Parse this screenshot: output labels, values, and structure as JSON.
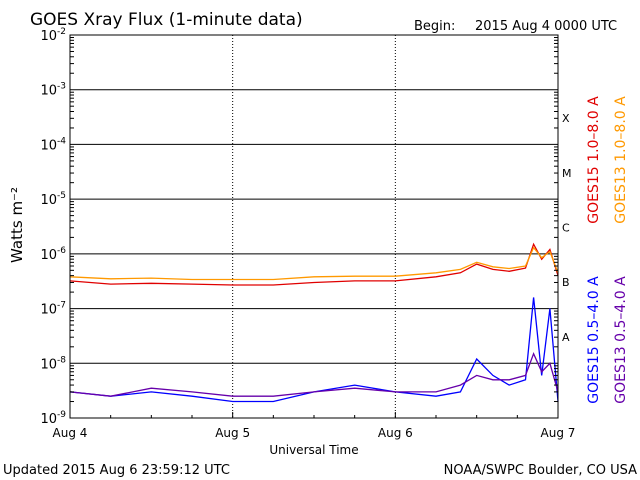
{
  "chart_data": {
    "type": "line",
    "title": "GOES Xray Flux (1-minute data)",
    "begin_label": "Begin:",
    "begin": "2015 Aug 4 0000 UTC",
    "ylabel": "Watts m⁻²",
    "xlabel": "Universal Time",
    "y_scale": "log",
    "ylim": [
      1e-09,
      0.01
    ],
    "y_ticks": [
      {
        "value": 0.01,
        "base": "10",
        "exp": "-2"
      },
      {
        "value": 0.001,
        "base": "10",
        "exp": "-3"
      },
      {
        "value": 0.0001,
        "base": "10",
        "exp": "-4"
      },
      {
        "value": 1e-05,
        "base": "10",
        "exp": "-5"
      },
      {
        "value": 1e-06,
        "base": "10",
        "exp": "-6"
      },
      {
        "value": 1e-07,
        "base": "10",
        "exp": "-7"
      },
      {
        "value": 1e-08,
        "base": "10",
        "exp": "-8"
      },
      {
        "value": 1e-09,
        "base": "10",
        "exp": "-9"
      }
    ],
    "x_ticks": [
      "Aug 4",
      "Aug 5",
      "Aug 6",
      "Aug 7"
    ],
    "xlim_days": [
      0,
      3
    ],
    "flare_classes": [
      {
        "label": "X",
        "value": 0.0001
      },
      {
        "label": "M",
        "value": 1e-05
      },
      {
        "label": "C",
        "value": 1e-06
      },
      {
        "label": "B",
        "value": 1e-07
      },
      {
        "label": "A",
        "value": 1e-08
      }
    ],
    "series": [
      {
        "name": "GOES15 1.0–8.0 A",
        "color": "#e00000",
        "x": [
          0,
          0.25,
          0.5,
          0.75,
          1.0,
          1.25,
          1.5,
          1.75,
          2.0,
          2.25,
          2.4,
          2.5,
          2.6,
          2.7,
          2.8,
          2.85,
          2.9,
          2.95,
          3.0
        ],
        "y": [
          3.2e-07,
          2.8e-07,
          2.9e-07,
          2.8e-07,
          2.7e-07,
          2.7e-07,
          3e-07,
          3.2e-07,
          3.2e-07,
          3.8e-07,
          4.5e-07,
          6.5e-07,
          5.2e-07,
          4.8e-07,
          5.5e-07,
          1.5e-06,
          8e-07,
          1.2e-06,
          4e-07
        ]
      },
      {
        "name": "GOES13 1.0–8.0 A",
        "color": "#ff9900",
        "x": [
          0,
          0.25,
          0.5,
          0.75,
          1.0,
          1.25,
          1.5,
          1.75,
          2.0,
          2.25,
          2.4,
          2.5,
          2.6,
          2.7,
          2.8,
          2.85,
          2.9,
          2.95,
          3.0
        ],
        "y": [
          3.8e-07,
          3.5e-07,
          3.6e-07,
          3.4e-07,
          3.4e-07,
          3.4e-07,
          3.8e-07,
          3.9e-07,
          3.9e-07,
          4.5e-07,
          5.2e-07,
          7e-07,
          5.8e-07,
          5.4e-07,
          6e-07,
          1.3e-06,
          8.5e-07,
          1.1e-06,
          4.5e-07
        ]
      },
      {
        "name": "GOES15 0.5–4.0 A",
        "color": "#0000ff",
        "x": [
          0,
          0.25,
          0.5,
          0.75,
          1.0,
          1.25,
          1.5,
          1.75,
          2.0,
          2.25,
          2.4,
          2.5,
          2.6,
          2.7,
          2.8,
          2.85,
          2.9,
          2.95,
          3.0
        ],
        "y": [
          3e-09,
          2.5e-09,
          3e-09,
          2.5e-09,
          2e-09,
          2e-09,
          3e-09,
          4e-09,
          3e-09,
          2.5e-09,
          3e-09,
          1.2e-08,
          6e-09,
          4e-09,
          5e-09,
          1.6e-07,
          6e-09,
          1e-07,
          2e-09
        ]
      },
      {
        "name": "GOES13 0.5–4.0 A",
        "color": "#6600aa",
        "x": [
          0,
          0.25,
          0.5,
          0.75,
          1.0,
          1.25,
          1.5,
          1.75,
          2.0,
          2.25,
          2.4,
          2.5,
          2.6,
          2.7,
          2.8,
          2.85,
          2.9,
          2.95,
          3.0
        ],
        "y": [
          3e-09,
          2.5e-09,
          3.5e-09,
          3e-09,
          2.5e-09,
          2.5e-09,
          3e-09,
          3.5e-09,
          3e-09,
          3e-09,
          4e-09,
          6e-09,
          5e-09,
          5e-09,
          6e-09,
          1.5e-08,
          7e-09,
          1e-08,
          3e-09
        ]
      }
    ],
    "grid": true,
    "legend": "right-vertical"
  },
  "footer": {
    "updated": "Updated 2015 Aug  6 23:59:12 UTC",
    "source": "NOAA/SWPC Boulder, CO USA"
  }
}
